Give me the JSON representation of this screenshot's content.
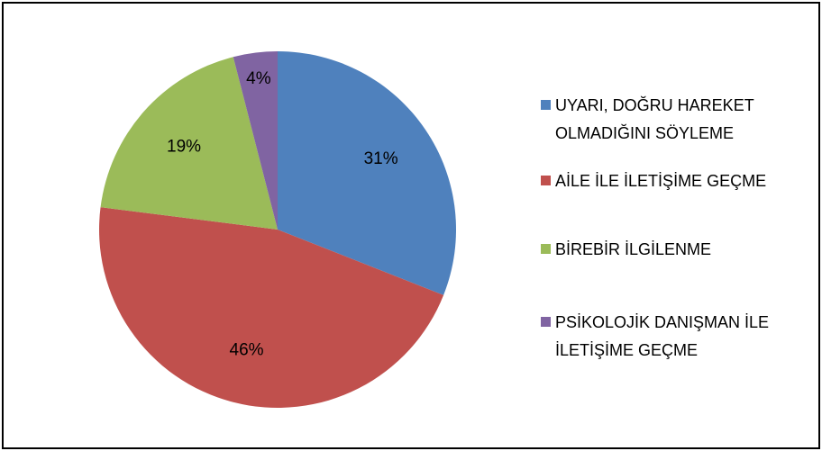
{
  "chart_data": {
    "type": "pie",
    "categories": [
      "UYARI, DOĞRU HAREKET OLMADIĞINI SÖYLEME",
      "AİLE İLE İLETİŞİME GEÇME",
      "BİREBİR İLGİLENME",
      "PSİKOLOJİK DANIŞMAN İLE İLETİŞİME GEÇME"
    ],
    "values": [
      31,
      46,
      19,
      4
    ],
    "value_labels": [
      "31%",
      "46%",
      "19%",
      "4%"
    ],
    "colors": [
      "#4f81bd",
      "#c0504d",
      "#9bbb59",
      "#8064a2"
    ],
    "legend": "right"
  }
}
